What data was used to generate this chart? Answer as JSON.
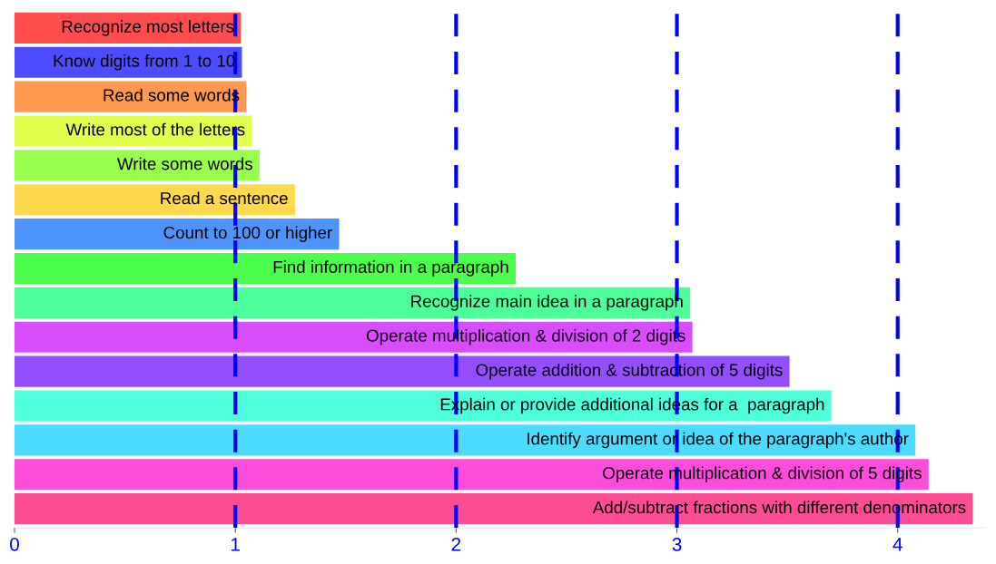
{
  "chart_data": {
    "type": "bar",
    "orientation": "horizontal",
    "categories": [
      "Recognize most letters",
      "Know digits from 1 to 10",
      "Read some words",
      "Write most of the letters",
      "Write some words",
      "Read a sentence",
      "Count to 100 or higher",
      "Find information in a paragraph",
      "Recognize main idea in a paragraph",
      "Operate multiplication & division of 2 digits",
      "Operate addition & subtraction of 5 digits",
      "Explain or provide additional ideas for a  paragraph",
      "Identify argument or idea of the paragraph's author",
      "Operate multiplication & division of 5 digits",
      "Add/subtract fractions with different denominators"
    ],
    "values": [
      1.025,
      1.03,
      1.05,
      1.075,
      1.11,
      1.27,
      1.47,
      2.27,
      3.06,
      3.07,
      3.51,
      3.7,
      4.08,
      4.14,
      4.34
    ],
    "colors": [
      "#ff4d4d",
      "#4d4dff",
      "#ff9950",
      "#e3ff4d",
      "#99ff4d",
      "#ffd94d",
      "#4d94ff",
      "#4dff4d",
      "#4dff99",
      "#d94dff",
      "#944dff",
      "#4dffdb",
      "#4ddbff",
      "#ff4ddb",
      "#ff4d94"
    ],
    "xlim": [
      0,
      4.4
    ],
    "xticks": [
      0,
      1,
      2,
      3,
      4
    ],
    "tick_labels": "x",
    "grid": false,
    "ref_lines": [
      {
        "axis": "x",
        "value": 1,
        "color": "#0000ff",
        "line_style": "dashed"
      },
      {
        "axis": "x",
        "value": 2,
        "color": "#0000ff",
        "line_style": "dashed"
      },
      {
        "axis": "x",
        "value": 3,
        "color": "#0000ff",
        "line_style": "dashed"
      },
      {
        "axis": "x",
        "value": 4,
        "color": "#0000ff",
        "line_style": "dashed"
      }
    ]
  }
}
